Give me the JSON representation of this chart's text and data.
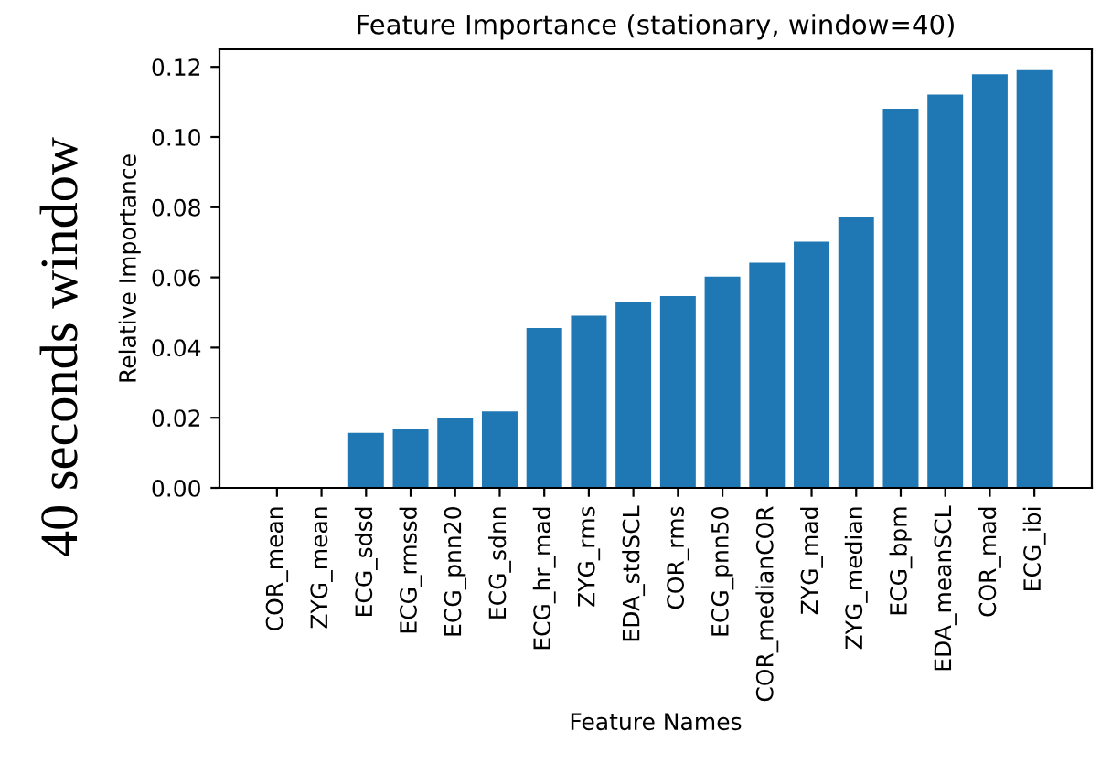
{
  "chart_data": {
    "type": "bar",
    "title": "Feature Importance (stationary, window=40)",
    "xlabel": "Feature Names",
    "ylabel": "Relative Importance",
    "annotations": [
      "40 seconds window"
    ],
    "categories": [
      "COR_mean",
      "ZYG_mean",
      "ECG_sdsd",
      "ECG_rmssd",
      "ECG_pnn20",
      "ECG_sdnn",
      "ECG_hr_mad",
      "ZYG_rms",
      "EDA_stdSCL",
      "COR_rms",
      "ECG_pnn50",
      "COR_medianCOR",
      "ZYG_mad",
      "ZYG_median",
      "ECG_bpm",
      "EDA_meanSCL",
      "COR_mad",
      "ECG_ibi"
    ],
    "values": [
      0,
      0,
      0.0157,
      0.0167,
      0.0199,
      0.0218,
      0.0456,
      0.0491,
      0.0531,
      0.0547,
      0.0602,
      0.0642,
      0.0702,
      0.0773,
      0.1081,
      0.1121,
      0.1179,
      0.1191
    ],
    "color": "#1f77b4",
    "ylim": [
      0,
      0.125
    ],
    "yticks": [
      {
        "value": 0,
        "label": "0.00"
      },
      {
        "value": 0.02,
        "label": "0.02"
      },
      {
        "value": 0.04,
        "label": "0.04"
      },
      {
        "value": 0.06,
        "label": "0.06"
      },
      {
        "value": 0.08,
        "label": "0.08"
      },
      {
        "value": 0.1,
        "label": "0.10"
      },
      {
        "value": 0.12,
        "label": "0.12"
      }
    ],
    "grid": false,
    "legend": false
  }
}
